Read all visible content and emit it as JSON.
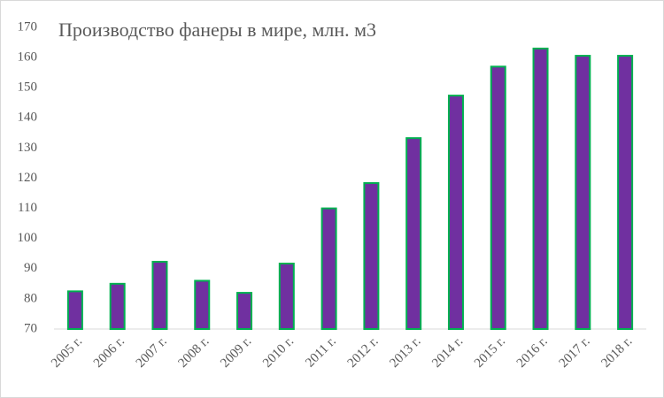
{
  "chart_data": {
    "type": "bar",
    "title": "Производство фанеры в мире, млн. м3",
    "categories": [
      "2005 г.",
      "2006 г.",
      "2007 г.",
      "2008 г.",
      "2009 г.",
      "2010 г.",
      "2011 г.",
      "2012 г.",
      "2013 г.",
      "2014 г.",
      "2015 г.",
      "2016 г.",
      "2017 г.",
      "2018 г."
    ],
    "values": [
      82.5,
      85,
      92.3,
      86,
      82,
      91.7,
      110,
      118.4,
      133.3,
      147.4,
      157,
      163,
      160.6,
      160.6
    ],
    "color": "#7030a0",
    "edge_color": "#00b050",
    "ylim": [
      70,
      170
    ],
    "yticks": [
      70,
      80,
      90,
      100,
      110,
      120,
      130,
      140,
      150,
      160,
      170
    ],
    "grid": false
  }
}
